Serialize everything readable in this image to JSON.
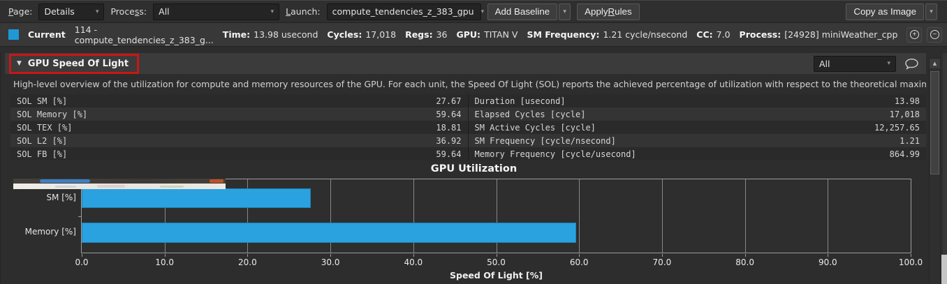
{
  "toolbar": {
    "page_label": {
      "pre": "",
      "accel": "P",
      "post": "age:"
    },
    "page_value": "Details",
    "process_label": {
      "pre": "Proce",
      "accel": "s",
      "post": "s:"
    },
    "process_value": "All",
    "launch_label": {
      "pre": "",
      "accel": "L",
      "post": "aunch:"
    },
    "launch_value": "compute_tendencies_z_383_gpu",
    "add_baseline_label": "Add Baseline",
    "apply_rules_label": {
      "pre": "Apply ",
      "accel": "R",
      "post": "ules"
    },
    "copy_as_image_label": "Copy as Image"
  },
  "current_row": {
    "swatch_color": "#1f98d5",
    "label": "Current",
    "kernel": "114 - compute_tendencies_z_383_g...",
    "fields": [
      {
        "label": "Time:",
        "value": "13.98 usecond"
      },
      {
        "label": "Cycles:",
        "value": "17,018"
      },
      {
        "label": "Regs:",
        "value": "36"
      },
      {
        "label": "GPU:",
        "value": "TITAN V"
      },
      {
        "label": "SM Frequency:",
        "value": "1.21 cycle/nsecond"
      },
      {
        "label": "CC:",
        "value": "7.0"
      },
      {
        "label": "Process:",
        "value": "[24928] miniWeather_cpp"
      }
    ]
  },
  "section": {
    "title": "GPU Speed Of Light",
    "filter_value": "All",
    "annotation_color": "#cc1616",
    "description": "High-level overview of the utilization for compute and memory resources of the GPU. For each unit, the Speed Of Light (SOL) reports the achieved percentage of utilization with respect to the theoretical maximum."
  },
  "metrics_table": {
    "left": [
      {
        "name": "SOL SM [%]",
        "value": "27.67"
      },
      {
        "name": "SOL Memory [%]",
        "value": "59.64"
      },
      {
        "name": "SOL TEX [%]",
        "value": "18.81"
      },
      {
        "name": "SOL L2 [%]",
        "value": "36.92"
      },
      {
        "name": "SOL FB [%]",
        "value": "59.64"
      }
    ],
    "right": [
      {
        "name": "Duration [usecond]",
        "value": "13.98"
      },
      {
        "name": "Elapsed Cycles [cycle]",
        "value": "17,018"
      },
      {
        "name": "SM Active Cycles [cycle]",
        "value": "12,257.65"
      },
      {
        "name": "SM Frequency [cycle/nsecond]",
        "value": "1.21"
      },
      {
        "name": "Memory Frequency [cycle/usecond]",
        "value": "864.99"
      }
    ]
  },
  "chart_data": {
    "type": "bar",
    "orientation": "horizontal",
    "title": "GPU Utilization",
    "categories": [
      "SM [%]",
      "Memory [%]"
    ],
    "values": [
      27.67,
      59.64
    ],
    "xlabel": "Speed Of Light [%]",
    "xlim": [
      0,
      100
    ],
    "xtick_labels": [
      "0.0",
      "10.0",
      "20.0",
      "30.0",
      "40.0",
      "50.0",
      "60.0",
      "70.0",
      "80.0",
      "90.0",
      "100.0"
    ],
    "bar_color": "#2aa2df",
    "grid": true,
    "legend": false
  },
  "icons": {
    "caret_down": "▼",
    "dropdown_arrow": "▾",
    "scroll_up": "▲",
    "plus": "+",
    "minus": "−",
    "info": "i"
  }
}
